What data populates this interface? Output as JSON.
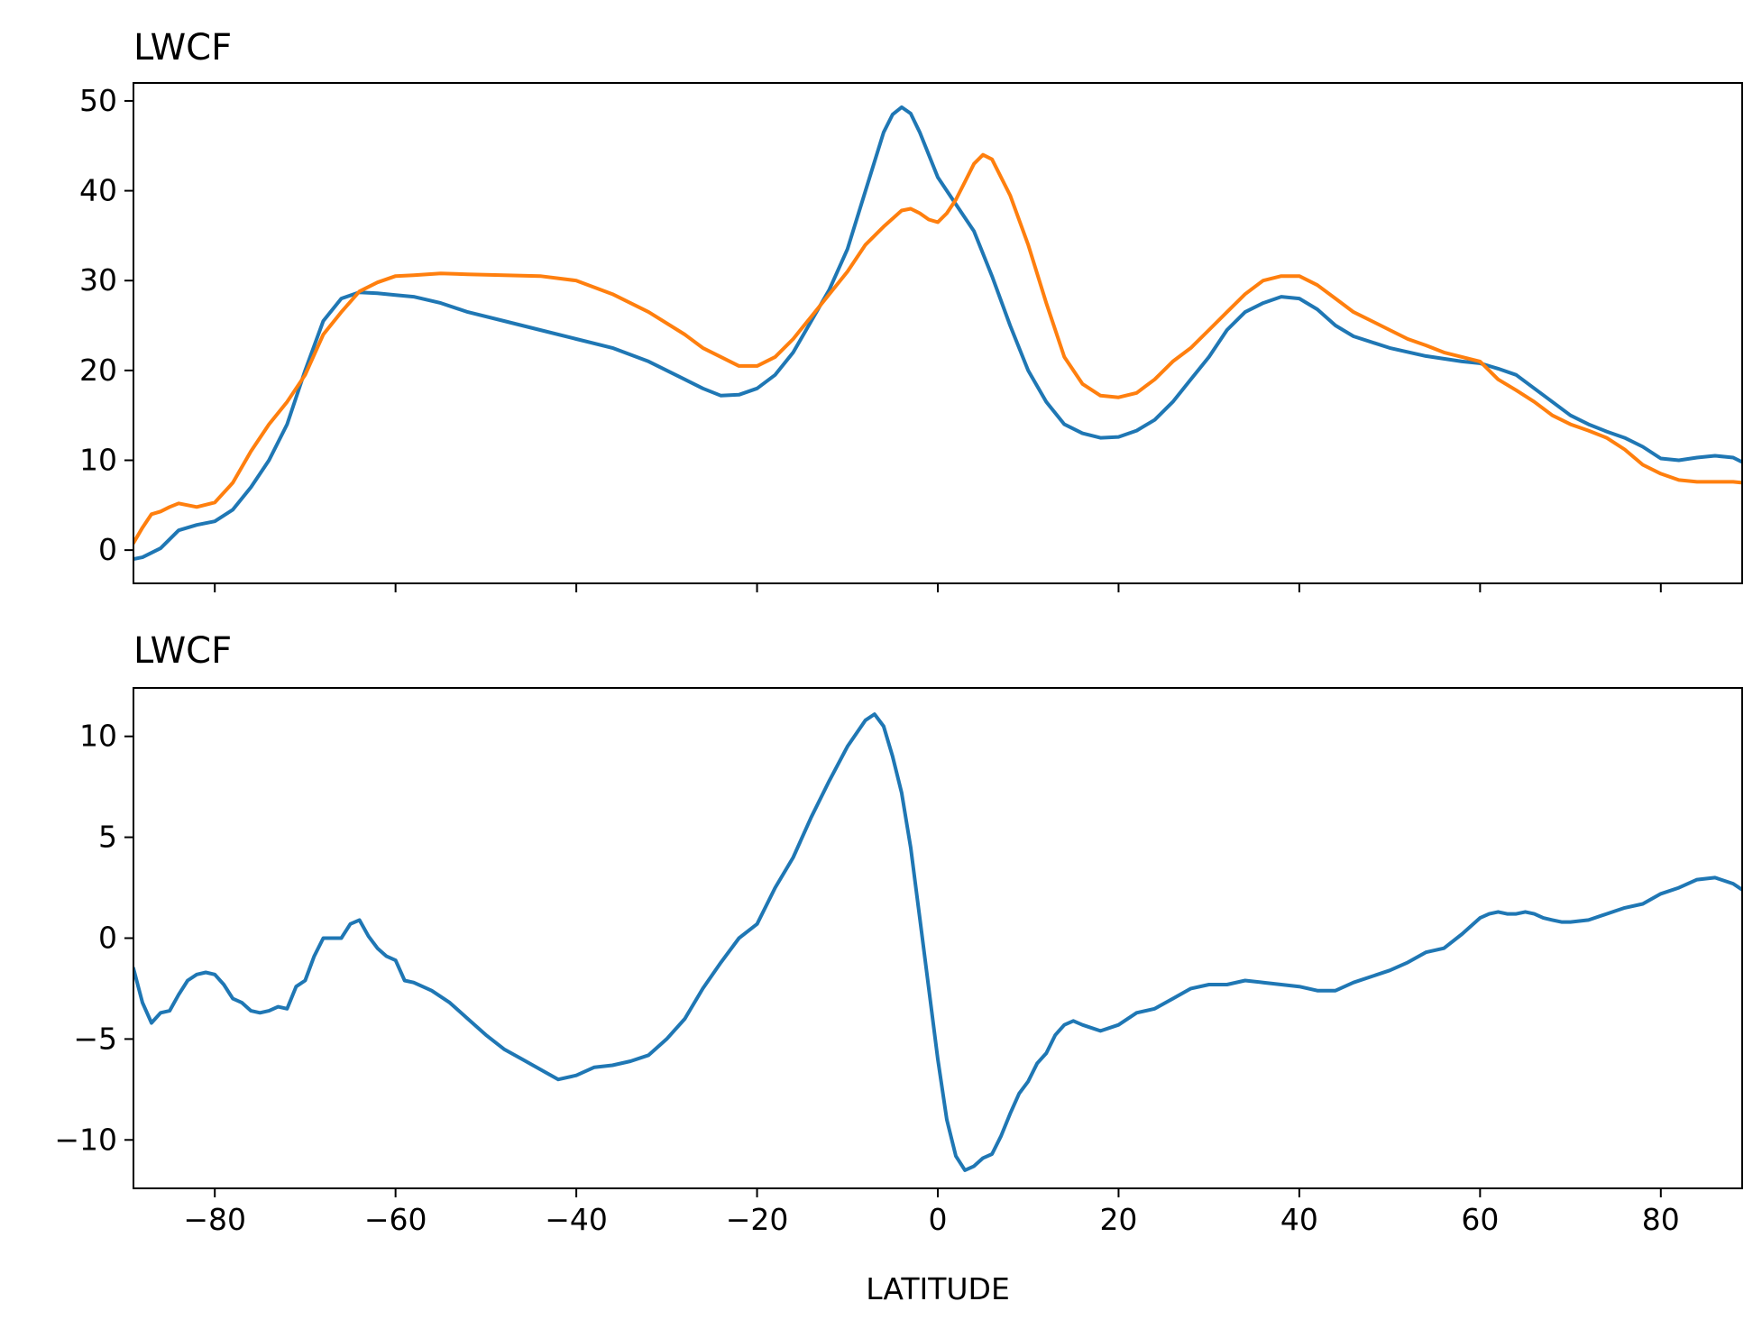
{
  "chart_data": [
    {
      "type": "line",
      "title": "LWCF",
      "xlabel": "",
      "ylabel": "",
      "xlim": [
        -89,
        89
      ],
      "ylim": [
        -3.7,
        52
      ],
      "xticks": [
        -80,
        -60,
        -40,
        -20,
        0,
        20,
        40,
        60,
        80
      ],
      "xtick_labels_visible": false,
      "yticks": [
        0,
        10,
        20,
        30,
        40,
        50
      ],
      "ytick_labels": [
        "0",
        "10",
        "20",
        "30",
        "40",
        "50"
      ],
      "grid": false,
      "series": [
        {
          "color": "#1f77b4",
          "x": [
            -89,
            -88,
            -86,
            -84,
            -82,
            -80,
            -78,
            -76,
            -74,
            -72,
            -70,
            -68,
            -66,
            -64,
            -62,
            -60,
            -58,
            -55,
            -52,
            -48,
            -44,
            -40,
            -36,
            -32,
            -28,
            -26,
            -24,
            -22,
            -20,
            -18,
            -16,
            -14,
            -12,
            -10,
            -8,
            -6,
            -5,
            -4,
            -3,
            -2,
            0,
            2,
            4,
            6,
            8,
            10,
            12,
            14,
            16,
            18,
            20,
            22,
            24,
            26,
            28,
            30,
            32,
            34,
            36,
            38,
            40,
            42,
            44,
            46,
            50,
            54,
            58,
            60,
            62,
            64,
            66,
            68,
            70,
            72,
            74,
            76,
            78,
            80,
            82,
            84,
            86,
            88,
            89
          ],
          "y": [
            -1,
            -0.8,
            0.2,
            2.2,
            2.8,
            3.2,
            4.5,
            7,
            10,
            14,
            20,
            25.5,
            28,
            28.7,
            28.6,
            28.4,
            28.2,
            27.5,
            26.5,
            25.5,
            24.5,
            23.5,
            22.5,
            21,
            19,
            18,
            17.2,
            17.3,
            18,
            19.5,
            22,
            25.5,
            29,
            33.5,
            40,
            46.5,
            48.5,
            49.3,
            48.6,
            46.5,
            41.5,
            38.5,
            35.5,
            30.5,
            25,
            20,
            16.5,
            14,
            13,
            12.5,
            12.6,
            13.3,
            14.5,
            16.5,
            19,
            21.5,
            24.5,
            26.5,
            27.5,
            28.2,
            28,
            26.8,
            25,
            23.8,
            22.5,
            21.6,
            21,
            20.8,
            20.2,
            19.5,
            18,
            16.5,
            15,
            14,
            13.2,
            12.5,
            11.5,
            10.2,
            10,
            10.3,
            10.5,
            10.3,
            9.8
          ]
        },
        {
          "color": "#ff7f0e",
          "x": [
            -89,
            -88,
            -87,
            -86,
            -85,
            -84,
            -83,
            -82,
            -80,
            -78,
            -76,
            -74,
            -72,
            -70,
            -68,
            -66,
            -64,
            -62,
            -60,
            -58,
            -55,
            -52,
            -48,
            -44,
            -40,
            -36,
            -32,
            -28,
            -26,
            -24,
            -22,
            -20,
            -18,
            -16,
            -14,
            -12,
            -10,
            -8,
            -6,
            -4,
            -3,
            -2,
            -1,
            0,
            1,
            2,
            3,
            4,
            5,
            6,
            8,
            10,
            12,
            14,
            16,
            18,
            20,
            22,
            24,
            26,
            28,
            30,
            32,
            34,
            36,
            38,
            40,
            42,
            44,
            46,
            48,
            50,
            52,
            54,
            56,
            58,
            60,
            62,
            64,
            66,
            68,
            70,
            72,
            74,
            76,
            78,
            80,
            82,
            84,
            86,
            88,
            89
          ],
          "y": [
            0.8,
            2.5,
            4,
            4.3,
            4.8,
            5.2,
            5,
            4.8,
            5.3,
            7.5,
            11,
            14,
            16.5,
            19.5,
            24,
            26.5,
            28.8,
            29.8,
            30.5,
            30.6,
            30.8,
            30.7,
            30.6,
            30.5,
            30,
            28.5,
            26.5,
            24,
            22.5,
            21.5,
            20.5,
            20.5,
            21.5,
            23.5,
            26,
            28.5,
            31,
            34,
            36,
            37.8,
            38,
            37.5,
            36.8,
            36.5,
            37.5,
            39,
            41,
            43,
            44,
            43.5,
            39.5,
            34,
            27.5,
            21.5,
            18.5,
            17.2,
            17,
            17.5,
            19,
            21,
            22.5,
            24.5,
            26.5,
            28.5,
            30,
            30.5,
            30.5,
            29.5,
            28,
            26.5,
            25.5,
            24.5,
            23.5,
            22.8,
            22,
            21.5,
            21,
            19,
            17.8,
            16.5,
            15,
            14,
            13.3,
            12.5,
            11.2,
            9.5,
            8.5,
            7.8,
            7.6,
            7.6,
            7.6,
            7.5
          ]
        }
      ]
    },
    {
      "type": "line",
      "title": "LWCF",
      "xlabel": "LATITUDE",
      "ylabel": "",
      "xlim": [
        -89,
        89
      ],
      "ylim": [
        -12.4,
        12.4
      ],
      "xticks": [
        -80,
        -60,
        -40,
        -20,
        0,
        20,
        40,
        60,
        80
      ],
      "xtick_labels": [
        "−80",
        "−60",
        "−40",
        "−20",
        "0",
        "20",
        "40",
        "60",
        "80"
      ],
      "yticks": [
        -10,
        -5,
        0,
        5,
        10
      ],
      "ytick_labels": [
        "−10",
        "−5",
        "0",
        "5",
        "10"
      ],
      "grid": false,
      "series": [
        {
          "color": "#1f77b4",
          "x": [
            -89,
            -88,
            -87,
            -86,
            -85,
            -84,
            -83,
            -82,
            -81,
            -80,
            -79,
            -78,
            -77,
            -76,
            -75,
            -74,
            -73,
            -72,
            -71,
            -70,
            -69,
            -68,
            -67,
            -66,
            -65,
            -64,
            -63,
            -62,
            -61,
            -60,
            -59,
            -58,
            -56,
            -54,
            -52,
            -50,
            -48,
            -46,
            -44,
            -42,
            -40,
            -38,
            -36,
            -34,
            -32,
            -30,
            -28,
            -26,
            -24,
            -22,
            -20,
            -18,
            -16,
            -14,
            -12,
            -10,
            -8,
            -7,
            -6,
            -5,
            -4,
            -3,
            -2,
            -1,
            0,
            1,
            2,
            3,
            4,
            5,
            6,
            7,
            8,
            9,
            10,
            11,
            12,
            13,
            14,
            15,
            16,
            18,
            20,
            22,
            24,
            26,
            28,
            30,
            32,
            34,
            36,
            38,
            40,
            42,
            44,
            46,
            48,
            50,
            52,
            54,
            56,
            58,
            60,
            61,
            62,
            63,
            64,
            65,
            66,
            67,
            68,
            69,
            70,
            72,
            74,
            76,
            78,
            80,
            82,
            84,
            86,
            88,
            89
          ],
          "y": [
            -1.5,
            -3.2,
            -4.2,
            -3.7,
            -3.6,
            -2.8,
            -2.1,
            -1.8,
            -1.7,
            -1.8,
            -2.3,
            -3,
            -3.2,
            -3.6,
            -3.7,
            -3.6,
            -3.4,
            -3.5,
            -2.4,
            -2.1,
            -0.9,
            0,
            0,
            0,
            0.7,
            0.9,
            0.1,
            -0.5,
            -0.9,
            -1.1,
            -2.1,
            -2.2,
            -2.6,
            -3.2,
            -4,
            -4.8,
            -5.5,
            -6,
            -6.5,
            -7,
            -6.8,
            -6.4,
            -6.3,
            -6.1,
            -5.8,
            -5,
            -4,
            -2.5,
            -1.2,
            0,
            0.7,
            2.5,
            4,
            6,
            7.8,
            9.5,
            10.8,
            11.1,
            10.5,
            9,
            7.2,
            4.5,
            1,
            -2.5,
            -6,
            -9,
            -10.8,
            -11.5,
            -11.3,
            -10.9,
            -10.7,
            -9.8,
            -8.7,
            -7.7,
            -7.1,
            -6.2,
            -5.7,
            -4.8,
            -4.3,
            -4.1,
            -4.3,
            -4.6,
            -4.3,
            -3.7,
            -3.5,
            -3,
            -2.5,
            -2.3,
            -2.3,
            -2.1,
            -2.2,
            -2.3,
            -2.4,
            -2.6,
            -2.6,
            -2.2,
            -1.9,
            -1.6,
            -1.2,
            -0.7,
            -0.5,
            0.2,
            1,
            1.2,
            1.3,
            1.2,
            1.2,
            1.3,
            1.2,
            1,
            0.9,
            0.8,
            0.8,
            0.9,
            1.2,
            1.5,
            1.7,
            2.2,
            2.5,
            2.9,
            3,
            2.7,
            2.4
          ]
        }
      ]
    }
  ]
}
